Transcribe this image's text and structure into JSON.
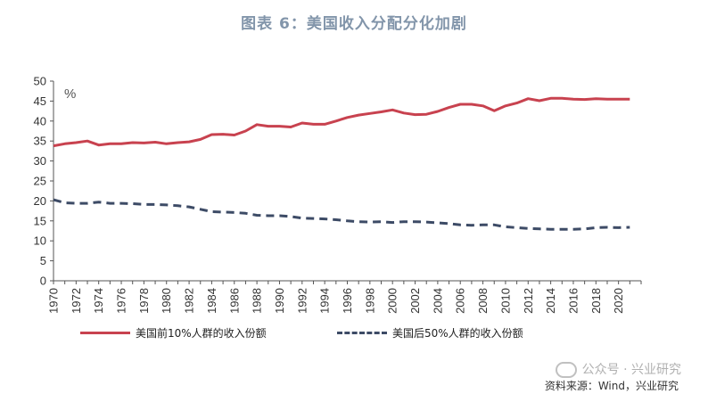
{
  "title": "图表 6：美国收入分配分化加剧",
  "unit_label": "%",
  "legend": {
    "top10": "美国前10%人群的收入份额",
    "bottom50": "美国后50%人群的收入份额"
  },
  "watermark": "公众号 · 兴业研究",
  "source": "资料来源：Wind，兴业研究",
  "colors": {
    "top10": "#c8424f",
    "bottom50": "#3d4b66"
  },
  "chart_data": {
    "type": "line",
    "xlim": [
      1970,
      2022
    ],
    "ylim": [
      0,
      50
    ],
    "yticks": [
      0,
      5,
      10,
      15,
      20,
      25,
      30,
      35,
      40,
      45,
      50
    ],
    "xticks": [
      1970,
      1972,
      1974,
      1976,
      1978,
      1980,
      1982,
      1984,
      1986,
      1988,
      1990,
      1992,
      1994,
      1996,
      1998,
      2000,
      2002,
      2004,
      2006,
      2008,
      2010,
      2012,
      2014,
      2016,
      2018,
      2020
    ],
    "x": [
      1970,
      1971,
      1972,
      1973,
      1974,
      1975,
      1976,
      1977,
      1978,
      1979,
      1980,
      1981,
      1982,
      1983,
      1984,
      1985,
      1986,
      1987,
      1988,
      1989,
      1990,
      1991,
      1992,
      1993,
      1994,
      1995,
      1996,
      1997,
      1998,
      1999,
      2000,
      2001,
      2002,
      2003,
      2004,
      2005,
      2006,
      2007,
      2008,
      2009,
      2010,
      2011,
      2012,
      2013,
      2014,
      2015,
      2016,
      2017,
      2018,
      2019,
      2020,
      2021
    ],
    "series": [
      {
        "name": "美国前10%人群的收入份额",
        "style": "solid",
        "values": [
          33.8,
          34.3,
          34.6,
          35.0,
          34.0,
          34.3,
          34.3,
          34.6,
          34.5,
          34.7,
          34.3,
          34.6,
          34.8,
          35.4,
          36.6,
          36.7,
          36.5,
          37.5,
          39.1,
          38.7,
          38.7,
          38.5,
          39.5,
          39.2,
          39.2,
          40.0,
          40.9,
          41.5,
          41.9,
          42.3,
          42.8,
          42.0,
          41.6,
          41.7,
          42.4,
          43.4,
          44.2,
          44.2,
          43.8,
          42.6,
          43.8,
          44.5,
          45.6,
          45.1,
          45.7,
          45.7,
          45.5,
          45.4,
          45.6,
          45.5,
          45.5,
          45.5
        ]
      },
      {
        "name": "美国后50%人群的收入份额",
        "style": "dashed",
        "values": [
          20.3,
          19.5,
          19.4,
          19.4,
          19.7,
          19.4,
          19.4,
          19.3,
          19.1,
          19.1,
          19.0,
          18.8,
          18.5,
          17.9,
          17.3,
          17.2,
          17.1,
          16.9,
          16.4,
          16.3,
          16.3,
          16.1,
          15.7,
          15.6,
          15.5,
          15.3,
          15.0,
          14.8,
          14.7,
          14.8,
          14.6,
          14.8,
          14.8,
          14.7,
          14.5,
          14.3,
          14.0,
          13.9,
          14.0,
          14.0,
          13.5,
          13.3,
          13.1,
          13.0,
          12.9,
          12.9,
          12.9,
          13.0,
          13.3,
          13.4,
          13.3,
          13.4
        ]
      }
    ]
  }
}
